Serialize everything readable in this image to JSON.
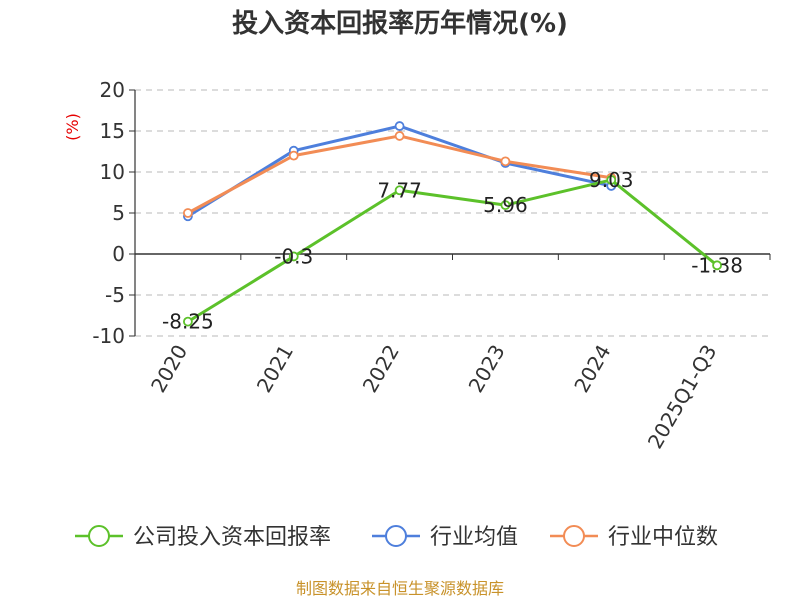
{
  "chart_data": {
    "type": "line",
    "title": "投入资本回报率历年情况(%)",
    "ylabel": "(%)",
    "categories": [
      "2020",
      "2021",
      "2022",
      "2023",
      "2024",
      "2025Q1-Q3"
    ],
    "yticks": [
      20,
      15,
      10,
      5,
      0,
      -5,
      -10
    ],
    "ylim": [
      -10,
      20
    ],
    "grid": true,
    "legend_position": "bottom",
    "series": [
      {
        "name": "公司投入资本回报率",
        "color": "#5cc12a",
        "values": [
          -8.25,
          -0.3,
          7.77,
          5.96,
          9.03,
          -1.38
        ],
        "labels": [
          "-8.25",
          "-0.3",
          "7.77",
          "5.96",
          "9.03",
          "-1.38"
        ]
      },
      {
        "name": "行业均值",
        "color": "#4e7fdc",
        "values": [
          4.6,
          12.6,
          15.6,
          11.1,
          8.3,
          null
        ]
      },
      {
        "name": "行业中位数",
        "color": "#f28c55",
        "values": [
          5.0,
          12.0,
          14.4,
          11.3,
          9.3,
          null
        ]
      }
    ],
    "source": "制图数据来自恒生聚源数据库"
  }
}
